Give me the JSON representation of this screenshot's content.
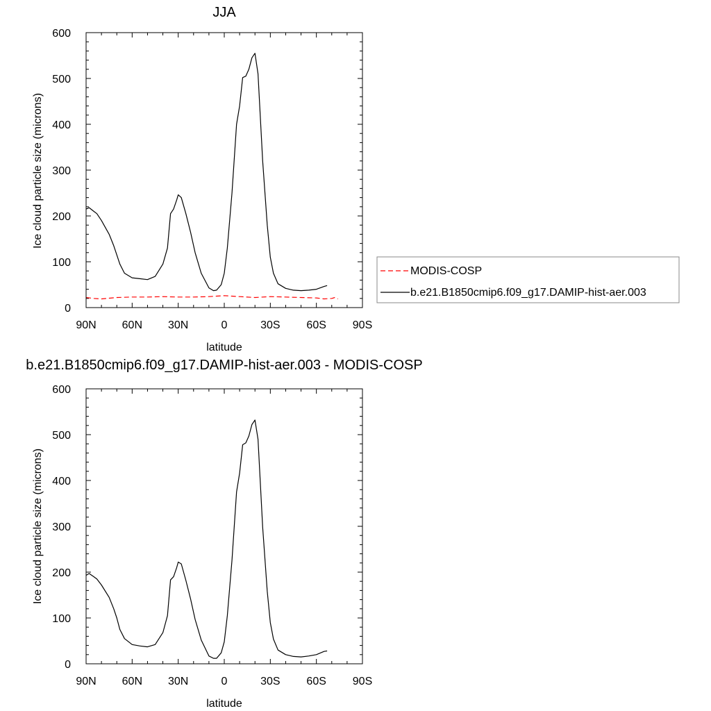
{
  "chart_data": [
    {
      "type": "line",
      "title": "JJA",
      "xlabel": "latitude",
      "ylabel": "Ice cloud particle size (microns)",
      "xlim": [
        90,
        -90
      ],
      "ylim": [
        0,
        600
      ],
      "x_tick_values": [
        90,
        60,
        30,
        0,
        -30,
        -60,
        -90
      ],
      "x_tick_labels": [
        "90N",
        "60N",
        "30N",
        "0",
        "30S",
        "60S",
        "90S"
      ],
      "y_tick_values": [
        0,
        100,
        200,
        300,
        400,
        500,
        600
      ],
      "y_tick_labels": [
        "0",
        "100",
        "200",
        "300",
        "400",
        "500",
        "600"
      ],
      "grid": false,
      "legend": {
        "placement": "right",
        "entries": [
          "MODIS-COSP",
          "b.e21.B1850cmip6.f09_g17.DAMIP-hist-aer.003"
        ]
      },
      "series": [
        {
          "name": "MODIS-COSP",
          "color": "#ff0000",
          "dash": true,
          "x": [
            90,
            85,
            80,
            70,
            60,
            50,
            40,
            30,
            20,
            10,
            5,
            0,
            -5,
            -10,
            -20,
            -30,
            -40,
            -50,
            -60,
            -65,
            -70,
            -72,
            -74
          ],
          "y": [
            22,
            20,
            19,
            22,
            23,
            23,
            24,
            23,
            23,
            24,
            25,
            26,
            25,
            24,
            22,
            24,
            23,
            22,
            21,
            19,
            20,
            22,
            19
          ]
        },
        {
          "name": "b.e21.B1850cmip6.f09_g17.DAMIP-hist-aer.003",
          "color": "#000000",
          "dash": false,
          "x": [
            90,
            88,
            85,
            83,
            80,
            75,
            72,
            70,
            68,
            65,
            60,
            55,
            50,
            45,
            40,
            37,
            35,
            33,
            31,
            30,
            28,
            25,
            22,
            19,
            15,
            10,
            7,
            5,
            2,
            0,
            -2,
            -5,
            -8,
            -10,
            -12,
            -14,
            -16,
            -18,
            -20,
            -22,
            -25,
            -28,
            -30,
            -32,
            -35,
            -40,
            -45,
            -50,
            -55,
            -60,
            -65,
            -67
          ],
          "y": [
            215,
            218,
            210,
            205,
            190,
            160,
            135,
            115,
            95,
            75,
            65,
            63,
            61,
            68,
            95,
            130,
            205,
            215,
            235,
            246,
            240,
            205,
            165,
            120,
            75,
            43,
            37,
            38,
            50,
            75,
            130,
            250,
            400,
            440,
            502,
            505,
            520,
            545,
            555,
            510,
            320,
            180,
            110,
            75,
            52,
            42,
            38,
            37,
            38,
            40,
            46,
            48
          ]
        }
      ]
    },
    {
      "type": "line",
      "title": "b.e21.B1850cmip6.f09_g17.DAMIP-hist-aer.003 - MODIS-COSP",
      "xlabel": "latitude",
      "ylabel": "Ice cloud particle size (microns)",
      "xlim": [
        90,
        -90
      ],
      "ylim": [
        0,
        600
      ],
      "x_tick_values": [
        90,
        60,
        30,
        0,
        -30,
        -60,
        -90
      ],
      "x_tick_labels": [
        "90N",
        "60N",
        "30N",
        "0",
        "30S",
        "60S",
        "90S"
      ],
      "y_tick_values": [
        0,
        100,
        200,
        300,
        400,
        500,
        600
      ],
      "y_tick_labels": [
        "0",
        "100",
        "200",
        "300",
        "400",
        "500",
        "600"
      ],
      "grid": false,
      "series": [
        {
          "color": "#000000",
          "dash": false,
          "x": [
            90,
            88,
            85,
            83,
            80,
            75,
            72,
            70,
            68,
            65,
            60,
            55,
            50,
            45,
            40,
            37,
            35,
            33,
            31,
            30,
            28,
            25,
            22,
            19,
            15,
            10,
            7,
            5,
            2,
            0,
            -2,
            -5,
            -8,
            -10,
            -12,
            -14,
            -16,
            -18,
            -20,
            -22,
            -25,
            -28,
            -30,
            -32,
            -35,
            -40,
            -45,
            -50,
            -55,
            -60,
            -65,
            -67
          ],
          "y": [
            193,
            197,
            190,
            185,
            172,
            145,
            120,
            100,
            75,
            55,
            42,
            39,
            37,
            42,
            68,
            105,
            183,
            190,
            210,
            222,
            218,
            182,
            142,
            97,
            52,
            17,
            12,
            12,
            24,
            48,
            105,
            226,
            375,
            416,
            478,
            482,
            497,
            522,
            532,
            490,
            298,
            158,
            90,
            54,
            30,
            20,
            16,
            15,
            17,
            20,
            27,
            28
          ]
        }
      ]
    }
  ]
}
